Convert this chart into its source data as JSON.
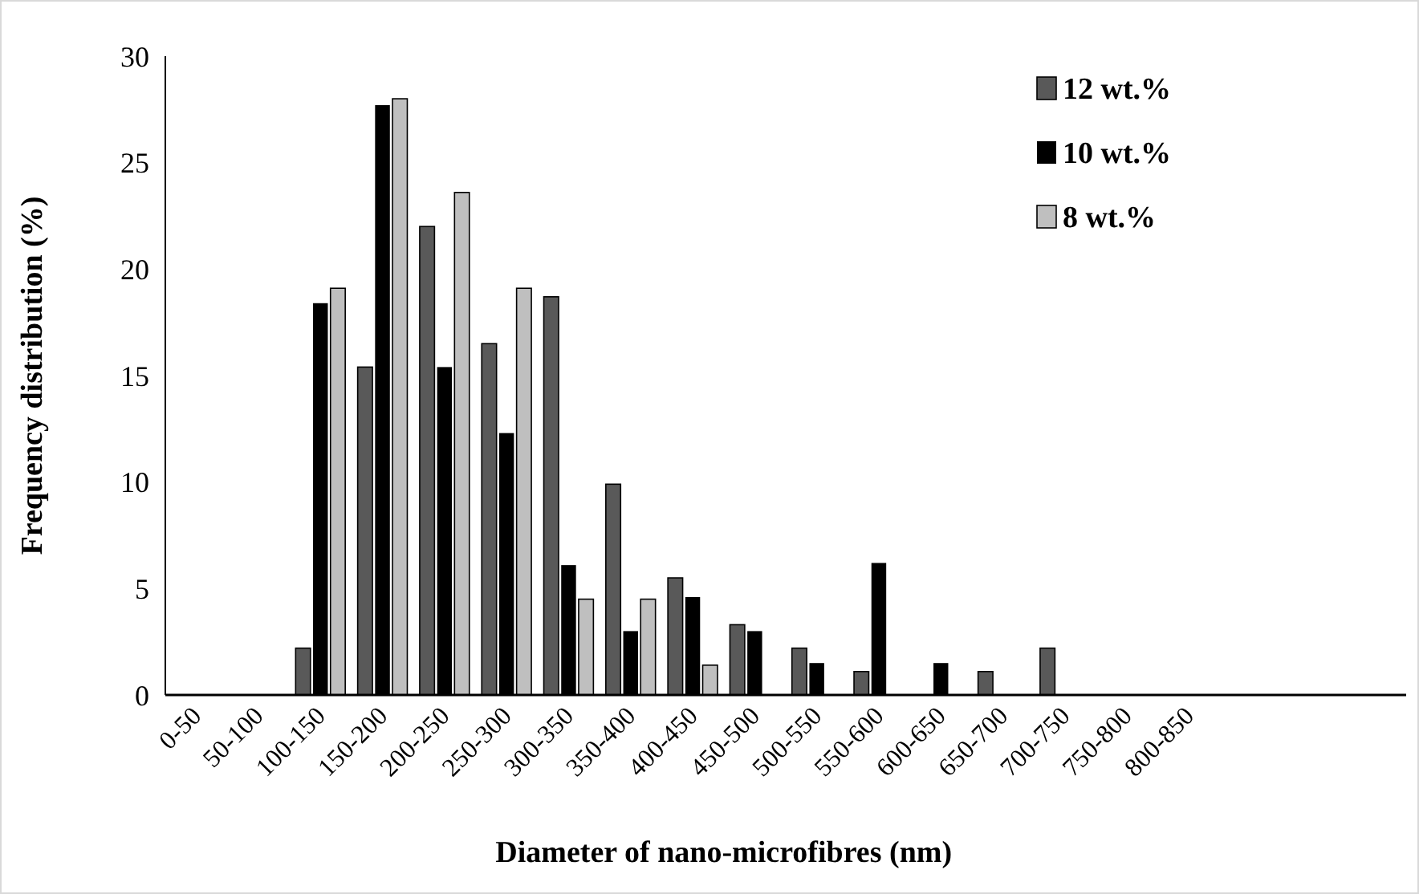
{
  "chart_data": {
    "type": "bar",
    "xlabel": "Diameter of nano-microfibres (nm)",
    "ylabel": "Frequency distribution (%)",
    "categories": [
      "0-50",
      "50-100",
      "100-150",
      "150-200",
      "200-250",
      "250-300",
      "300-350",
      "350-400",
      "400-450",
      "450-500",
      "500-550",
      "550-600",
      "600-650",
      "650-700",
      "700-750",
      "750-800",
      "800-850",
      null,
      null,
      null
    ],
    "series": [
      {
        "name": "12 wt.%",
        "color": "#595959",
        "values": [
          0,
          0,
          2.2,
          15.4,
          22.0,
          16.5,
          18.7,
          9.9,
          5.5,
          3.3,
          2.2,
          1.1,
          0,
          1.1,
          2.2,
          0,
          0,
          0,
          0,
          0
        ]
      },
      {
        "name": "10 wt.%",
        "color": "#000000",
        "values": [
          0,
          0,
          18.4,
          27.7,
          15.4,
          12.3,
          6.1,
          3.0,
          4.6,
          3.0,
          1.5,
          6.2,
          1.5,
          0,
          0,
          0,
          0,
          0,
          0,
          0
        ]
      },
      {
        "name": "8 wt.%",
        "color": "#bfbfbf",
        "values": [
          0,
          0,
          19.1,
          28.0,
          23.6,
          19.1,
          4.5,
          4.5,
          1.4,
          0,
          0,
          0,
          0,
          0,
          0,
          0,
          0,
          0,
          0,
          0
        ]
      }
    ],
    "ylim": [
      0,
      30
    ],
    "yticks": [
      0,
      5,
      10,
      15,
      20,
      25,
      30
    ],
    "grid": false,
    "legend": "top right"
  }
}
